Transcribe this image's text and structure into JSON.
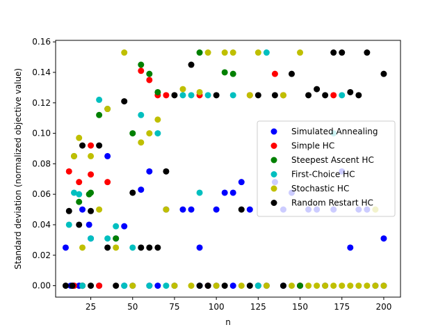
{
  "chart_data": {
    "type": "scatter",
    "title": "",
    "xlabel": "n",
    "ylabel": "Standard deviation (normalized objective value)",
    "xlim": [
      4,
      210
    ],
    "ylim": [
      -0.0075,
      0.161
    ],
    "xticks": [
      25,
      50,
      75,
      100,
      125,
      150,
      175,
      200
    ],
    "xtick_labels": [
      "25",
      "50",
      "75",
      "100",
      "125",
      "150",
      "175",
      "200"
    ],
    "yticks": [
      0.0,
      0.02,
      0.04,
      0.06,
      0.08,
      0.1,
      0.12,
      0.14,
      0.16
    ],
    "ytick_labels": [
      "0.00",
      "0.02",
      "0.04",
      "0.06",
      "0.08",
      "0.10",
      "0.12",
      "0.14",
      "0.16"
    ],
    "grid": false,
    "legend_position": "center-right",
    "series": [
      {
        "name": "Simulated Annealing",
        "color": "#0000ff",
        "points": [
          [
            10,
            0.025
          ],
          [
            13,
            0.0
          ],
          [
            15,
            0.0
          ],
          [
            18,
            0.0
          ],
          [
            20,
            0.05
          ],
          [
            20,
            0.0
          ],
          [
            24,
            0.04
          ],
          [
            25,
            0.031
          ],
          [
            30,
            0.0
          ],
          [
            35,
            0.085
          ],
          [
            40,
            0.031
          ],
          [
            45,
            0.039
          ],
          [
            45,
            0.0
          ],
          [
            50,
            0.0
          ],
          [
            55,
            0.063
          ],
          [
            60,
            0.075
          ],
          [
            60,
            0.0
          ],
          [
            65,
            0.0
          ],
          [
            70,
            0.05
          ],
          [
            75,
            0.0
          ],
          [
            80,
            0.05
          ],
          [
            85,
            0.05
          ],
          [
            90,
            0.025
          ],
          [
            90,
            0.0
          ],
          [
            95,
            0.0
          ],
          [
            100,
            0.05
          ],
          [
            100,
            0.0
          ],
          [
            105,
            0.061
          ],
          [
            110,
            0.061
          ],
          [
            110,
            0.0
          ],
          [
            115,
            0.068
          ],
          [
            120,
            0.05
          ],
          [
            125,
            0.0
          ],
          [
            130,
            0.0
          ],
          [
            135,
            0.068
          ],
          [
            140,
            0.05
          ],
          [
            140,
            0.0
          ],
          [
            145,
            0.061
          ],
          [
            150,
            0.0
          ],
          [
            155,
            0.05
          ],
          [
            160,
            0.05
          ],
          [
            165,
            0.0
          ],
          [
            170,
            0.05
          ],
          [
            175,
            0.075
          ],
          [
            180,
            0.025
          ],
          [
            185,
            0.05
          ],
          [
            190,
            0.05
          ],
          [
            195,
            0.0
          ],
          [
            200,
            0.031
          ],
          [
            200,
            0.0
          ]
        ]
      },
      {
        "name": "Simple HC",
        "color": "#ff0000",
        "points": [
          [
            12,
            0.075
          ],
          [
            15,
            0.0
          ],
          [
            18,
            0.068
          ],
          [
            20,
            0.0
          ],
          [
            25,
            0.092
          ],
          [
            25,
            0.073
          ],
          [
            30,
            0.0
          ],
          [
            35,
            0.068
          ],
          [
            55,
            0.141
          ],
          [
            60,
            0.135
          ],
          [
            65,
            0.125
          ],
          [
            70,
            0.125
          ],
          [
            90,
            0.125
          ],
          [
            95,
            0.0
          ],
          [
            120,
            0.125
          ],
          [
            135,
            0.139
          ],
          [
            140,
            0.125
          ],
          [
            150,
            0.0
          ],
          [
            170,
            0.125
          ]
        ]
      },
      {
        "name": "Steepest Ascent HC",
        "color": "#008000",
        "points": [
          [
            15,
            0.085
          ],
          [
            18,
            0.055
          ],
          [
            20,
            0.0
          ],
          [
            24,
            0.06
          ],
          [
            25,
            0.061
          ],
          [
            30,
            0.112
          ],
          [
            35,
            0.116
          ],
          [
            40,
            0.031
          ],
          [
            50,
            0.1
          ],
          [
            55,
            0.145
          ],
          [
            60,
            0.139
          ],
          [
            65,
            0.127
          ],
          [
            90,
            0.153
          ],
          [
            105,
            0.14
          ],
          [
            110,
            0.139
          ],
          [
            125,
            0.0
          ],
          [
            150,
            0.0
          ]
        ]
      },
      {
        "name": "First-Choice HC",
        "color": "#00bfbf",
        "points": [
          [
            12,
            0.04
          ],
          [
            15,
            0.061
          ],
          [
            18,
            0.06
          ],
          [
            20,
            0.0
          ],
          [
            25,
            0.031
          ],
          [
            30,
            0.122
          ],
          [
            35,
            0.031
          ],
          [
            40,
            0.039
          ],
          [
            45,
            0.0
          ],
          [
            50,
            0.025
          ],
          [
            55,
            0.112
          ],
          [
            60,
            0.0
          ],
          [
            65,
            0.1
          ],
          [
            70,
            0.0
          ],
          [
            80,
            0.125
          ],
          [
            85,
            0.125
          ],
          [
            90,
            0.061
          ],
          [
            95,
            0.125
          ],
          [
            110,
            0.125
          ],
          [
            125,
            0.0
          ],
          [
            130,
            0.153
          ],
          [
            170,
            0.1
          ],
          [
            175,
            0.125
          ]
        ]
      },
      {
        "name": "Stochastic HC",
        "color": "#bfbf00",
        "points": [
          [
            15,
            0.085
          ],
          [
            18,
            0.097
          ],
          [
            20,
            0.025
          ],
          [
            25,
            0.085
          ],
          [
            30,
            0.05
          ],
          [
            35,
            0.116
          ],
          [
            40,
            0.025
          ],
          [
            45,
            0.153
          ],
          [
            50,
            0.0
          ],
          [
            55,
            0.094
          ],
          [
            60,
            0.1
          ],
          [
            65,
            0.109
          ],
          [
            70,
            0.05
          ],
          [
            75,
            0.0
          ],
          [
            80,
            0.129
          ],
          [
            85,
            0.0
          ],
          [
            90,
            0.127
          ],
          [
            95,
            0.153
          ],
          [
            100,
            0.0
          ],
          [
            105,
            0.153
          ],
          [
            110,
            0.153
          ],
          [
            115,
            0.0
          ],
          [
            120,
            0.125
          ],
          [
            125,
            0.153
          ],
          [
            130,
            0.0
          ],
          [
            140,
            0.125
          ],
          [
            145,
            0.0
          ],
          [
            150,
            0.153
          ],
          [
            155,
            0.0
          ],
          [
            160,
            0.0
          ],
          [
            165,
            0.0
          ],
          [
            170,
            0.0
          ],
          [
            175,
            0.0
          ],
          [
            180,
            0.0
          ],
          [
            185,
            0.0
          ],
          [
            190,
            0.0
          ],
          [
            195,
            0.05
          ],
          [
            195,
            0.0
          ],
          [
            200,
            0.0
          ]
        ]
      },
      {
        "name": "Random Restart HC",
        "color": "#000000",
        "points": [
          [
            10,
            0.0
          ],
          [
            12,
            0.049
          ],
          [
            14,
            0.0
          ],
          [
            18,
            0.04
          ],
          [
            20,
            0.092
          ],
          [
            25,
            0.049
          ],
          [
            25,
            0.0
          ],
          [
            30,
            0.092
          ],
          [
            35,
            0.025
          ],
          [
            40,
            0.0
          ],
          [
            45,
            0.121
          ],
          [
            50,
            0.061
          ],
          [
            55,
            0.025
          ],
          [
            60,
            0.025
          ],
          [
            65,
            0.025
          ],
          [
            70,
            0.075
          ],
          [
            75,
            0.125
          ],
          [
            85,
            0.145
          ],
          [
            90,
            0.0
          ],
          [
            95,
            0.0
          ],
          [
            100,
            0.125
          ],
          [
            105,
            0.0
          ],
          [
            115,
            0.05
          ],
          [
            120,
            0.0
          ],
          [
            125,
            0.125
          ],
          [
            135,
            0.125
          ],
          [
            140,
            0.0
          ],
          [
            145,
            0.139
          ],
          [
            155,
            0.125
          ],
          [
            160,
            0.129
          ],
          [
            165,
            0.125
          ],
          [
            170,
            0.153
          ],
          [
            175,
            0.153
          ],
          [
            180,
            0.127
          ],
          [
            185,
            0.125
          ],
          [
            190,
            0.153
          ],
          [
            200,
            0.139
          ]
        ]
      }
    ]
  }
}
